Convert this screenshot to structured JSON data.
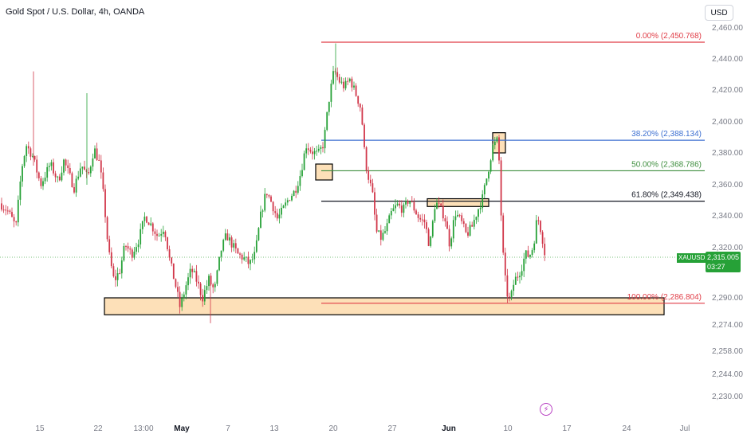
{
  "header": {
    "title": "Gold Spot / U.S. Dollar, 4h, OANDA"
  },
  "toolbar": {
    "currency": "USD"
  },
  "price_tag": {
    "symbol": "XAUUSD",
    "price": "2,315.005",
    "countdown": "03:27"
  },
  "chart_data": {
    "type": "candlestick",
    "title": "Gold Spot / U.S. Dollar, 4h, OANDA",
    "xlabel": "",
    "ylabel": "",
    "grid": false,
    "y_ticks": [
      "2,460.000",
      "2,440.000",
      "2,420.000",
      "2,400.000",
      "2,380.000",
      "2,360.000",
      "2,340.000",
      "2,320.000",
      "2,290.000",
      "2,274.000",
      "2,258.000",
      "2,244.000",
      "2,230.000"
    ],
    "x_ticks": [
      {
        "label": "15",
        "bold": false
      },
      {
        "label": "22",
        "bold": false
      },
      {
        "label": "13:00",
        "bold": false
      },
      {
        "label": "May",
        "bold": true
      },
      {
        "label": "7",
        "bold": false
      },
      {
        "label": "13",
        "bold": false
      },
      {
        "label": "20",
        "bold": false
      },
      {
        "label": "27",
        "bold": false
      },
      {
        "label": "Jun",
        "bold": true
      },
      {
        "label": "10",
        "bold": false
      },
      {
        "label": "17",
        "bold": false
      },
      {
        "label": "24",
        "bold": false
      },
      {
        "label": "Jul",
        "bold": false
      }
    ],
    "last_price": 2315.005,
    "fib_levels": [
      {
        "label": "0.00% (2,450.768)",
        "price": 2450.768,
        "color": "#e03c46"
      },
      {
        "label": "38.20% (2,388.134)",
        "price": 2388.134,
        "color": "#3c6fd1"
      },
      {
        "label": "50.00% (2,368.786)",
        "price": 2368.786,
        "color": "#3e8e3e"
      },
      {
        "label": "61.80% (2,349.438)",
        "price": 2349.438,
        "color": "#131722"
      },
      {
        "label": "100.00% (2,286.804)",
        "price": 2286.804,
        "color": "#e03c46"
      }
    ],
    "zones": [
      {
        "name": "support-zone",
        "price_top": 2290,
        "price_bottom": 2280,
        "fill": "#fde0b8"
      },
      {
        "name": "box-may-17",
        "price_top": 2373,
        "price_bottom": 2363,
        "fill": "#fde0b8"
      },
      {
        "name": "box-jun-3",
        "price_top": 2351,
        "price_bottom": 2346,
        "fill": "#fde0b8"
      },
      {
        "name": "box-jun-7",
        "price_top": 2393,
        "price_bottom": 2380,
        "fill": "#fde0b8"
      }
    ],
    "colors": {
      "up": "#26a137",
      "down": "#d1374a",
      "fib0": "#e03c46"
    },
    "close_path": [
      [
        0,
        2348
      ],
      [
        10,
        2343
      ],
      [
        20,
        2333
      ],
      [
        27,
        2370
      ],
      [
        33,
        2385
      ],
      [
        41,
        2378
      ],
      [
        51,
        2360
      ],
      [
        63,
        2373
      ],
      [
        73,
        2362
      ],
      [
        80,
        2375
      ],
      [
        93,
        2358
      ],
      [
        102,
        2373
      ],
      [
        110,
        2364
      ],
      [
        118,
        2383
      ],
      [
        125,
        2373
      ],
      [
        130,
        2352
      ],
      [
        136,
        2318
      ],
      [
        143,
        2300
      ],
      [
        150,
        2306
      ],
      [
        157,
        2322
      ],
      [
        165,
        2316
      ],
      [
        174,
        2325
      ],
      [
        182,
        2340
      ],
      [
        190,
        2334
      ],
      [
        198,
        2327
      ],
      [
        206,
        2333
      ],
      [
        213,
        2312
      ],
      [
        220,
        2298
      ],
      [
        226,
        2284
      ],
      [
        233,
        2297
      ],
      [
        240,
        2307
      ],
      [
        247,
        2300
      ],
      [
        254,
        2290
      ],
      [
        262,
        2301
      ],
      [
        269,
        2294
      ],
      [
        277,
        2318
      ],
      [
        284,
        2328
      ],
      [
        291,
        2322
      ],
      [
        298,
        2316
      ],
      [
        305,
        2314
      ],
      [
        313,
        2310
      ],
      [
        320,
        2316
      ],
      [
        327,
        2340
      ],
      [
        334,
        2356
      ],
      [
        341,
        2348
      ],
      [
        348,
        2338
      ],
      [
        356,
        2345
      ],
      [
        363,
        2352
      ],
      [
        370,
        2356
      ],
      [
        377,
        2367
      ],
      [
        384,
        2385
      ],
      [
        391,
        2381
      ],
      [
        399,
        2379
      ],
      [
        406,
        2386
      ],
      [
        412,
        2412
      ],
      [
        419,
        2433
      ],
      [
        425,
        2426
      ],
      [
        432,
        2422
      ],
      [
        439,
        2427
      ],
      [
        446,
        2418
      ],
      [
        453,
        2408
      ],
      [
        458,
        2375
      ],
      [
        463,
        2363
      ],
      [
        467,
        2355
      ],
      [
        472,
        2330
      ],
      [
        478,
        2326
      ],
      [
        484,
        2331
      ],
      [
        491,
        2342
      ],
      [
        498,
        2347
      ],
      [
        506,
        2344
      ],
      [
        513,
        2351
      ],
      [
        520,
        2344
      ],
      [
        526,
        2338
      ],
      [
        533,
        2336
      ],
      [
        539,
        2320
      ],
      [
        546,
        2349
      ],
      [
        552,
        2345
      ],
      [
        558,
        2339
      ],
      [
        564,
        2322
      ],
      [
        571,
        2342
      ],
      [
        578,
        2337
      ],
      [
        585,
        2328
      ],
      [
        592,
        2333
      ],
      [
        598,
        2342
      ],
      [
        605,
        2351
      ],
      [
        612,
        2368
      ],
      [
        618,
        2384
      ],
      [
        625,
        2389
      ],
      [
        628,
        2347
      ],
      [
        631,
        2316
      ],
      [
        635,
        2294
      ],
      [
        640,
        2288
      ],
      [
        645,
        2300
      ],
      [
        650,
        2304
      ],
      [
        654,
        2308
      ],
      [
        659,
        2316
      ],
      [
        664,
        2315
      ],
      [
        669,
        2321
      ],
      [
        674,
        2340
      ],
      [
        679,
        2330
      ],
      [
        684,
        2315
      ]
    ]
  }
}
